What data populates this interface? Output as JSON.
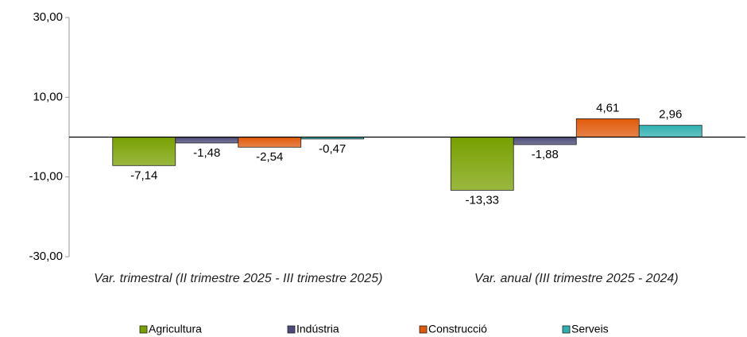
{
  "chart_data": {
    "type": "bar",
    "categories": [
      "Var. trimestral (II trimestre 2025 - III trimestre 2025)",
      "Var. anual (III trimestre 2025 - 2024)"
    ],
    "series": [
      {
        "name": "Agricultura",
        "color": "#78a000",
        "values": [
          -7.14,
          -13.33
        ],
        "value_labels": [
          "-7,14",
          "-13,33"
        ]
      },
      {
        "name": "Indústria",
        "color": "#4b4a78",
        "values": [
          -1.48,
          -1.88
        ],
        "value_labels": [
          "-1,48",
          "-1,88"
        ]
      },
      {
        "name": "Construcció",
        "color": "#e05a0a",
        "values": [
          -2.54,
          4.61
        ],
        "value_labels": [
          "-2,54",
          "4,61"
        ]
      },
      {
        "name": "Serveis",
        "color": "#2fb0b0",
        "values": [
          -0.47,
          2.96
        ],
        "value_labels": [
          "-0,47",
          "2,96"
        ]
      }
    ],
    "ylim": [
      -30,
      30
    ],
    "yticks": [
      {
        "value": 30,
        "label": "30,00"
      },
      {
        "value": 10,
        "label": "10,00"
      },
      {
        "value": -10,
        "label": "-10,00"
      },
      {
        "value": -30,
        "label": "-30,00"
      }
    ],
    "grid": false
  }
}
